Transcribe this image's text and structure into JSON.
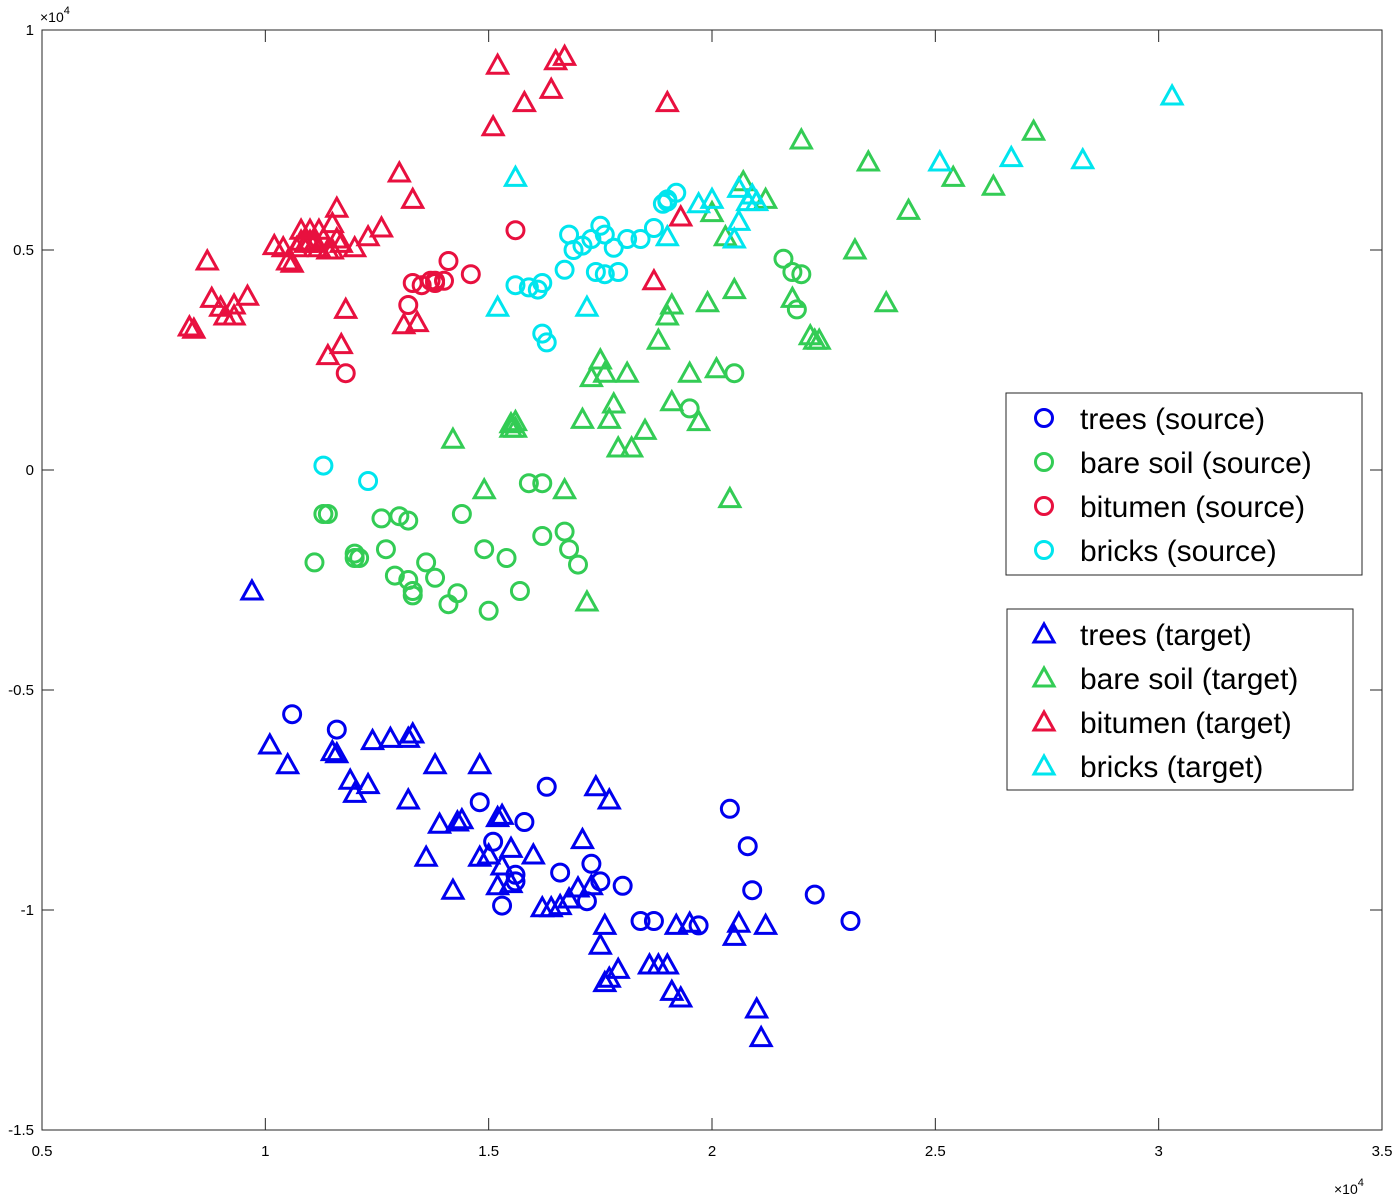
{
  "chart_data": {
    "type": "scatter",
    "x_multiplier": "×10",
    "x_exponent": "4",
    "y_multiplier": "×10",
    "y_exponent": "4",
    "xlim": [
      0.5,
      3.5
    ],
    "ylim": [
      -1.5,
      1.0
    ],
    "x_ticks": [
      0.5,
      1,
      1.5,
      2,
      2.5,
      3,
      3.5
    ],
    "x_tick_labels": [
      "0.5",
      "1",
      "1.5",
      "2",
      "2.5",
      "3",
      "3.5"
    ],
    "y_ticks": [
      -1.5,
      -1,
      -0.5,
      0,
      0.5,
      1
    ],
    "y_tick_labels": [
      "-1.5",
      "-1",
      "-0.5",
      "0",
      "0.5",
      "1"
    ],
    "grid": false,
    "legend_source_placement": "right",
    "legend_target_placement": "right",
    "series": [
      {
        "name": "trees (source)",
        "marker": "circle",
        "color": "#0000EE",
        "x": [
          1.06,
          1.16,
          1.48,
          1.51,
          1.53,
          1.56,
          1.56,
          1.58,
          1.63,
          1.66,
          1.72,
          1.73,
          1.75,
          1.8,
          1.84,
          1.87,
          1.97,
          2.04,
          2.08,
          2.09,
          2.23,
          2.31
        ],
        "y": [
          -0.555,
          -0.59,
          -0.755,
          -0.845,
          -0.99,
          -0.92,
          -0.935,
          -0.8,
          -0.72,
          -0.915,
          -0.98,
          -0.895,
          -0.935,
          -0.945,
          -1.025,
          -1.025,
          -1.035,
          -0.77,
          -0.855,
          -0.955,
          -0.965,
          -1.025
        ]
      },
      {
        "name": "bare soil (source)",
        "marker": "circle",
        "color": "#33CC55",
        "x": [
          1.11,
          1.13,
          1.14,
          1.2,
          1.2,
          1.21,
          1.26,
          1.27,
          1.29,
          1.3,
          1.32,
          1.32,
          1.33,
          1.33,
          1.36,
          1.38,
          1.41,
          1.43,
          1.44,
          1.49,
          1.5,
          1.54,
          1.57,
          1.59,
          1.62,
          1.62,
          1.67,
          1.68,
          1.7,
          1.95,
          2.05,
          2.16,
          2.18,
          2.19,
          2.2
        ],
        "y": [
          -0.21,
          -0.1,
          -0.1,
          -0.19,
          -0.2,
          -0.2,
          -0.11,
          -0.18,
          -0.24,
          -0.105,
          -0.115,
          -0.25,
          -0.275,
          -0.285,
          -0.21,
          -0.245,
          -0.305,
          -0.28,
          -0.1,
          -0.18,
          -0.32,
          -0.2,
          -0.275,
          -0.03,
          -0.15,
          -0.03,
          -0.14,
          -0.18,
          -0.215,
          0.14,
          0.22,
          0.48,
          0.45,
          0.365,
          0.445
        ]
      },
      {
        "name": "bitumen (source)",
        "marker": "circle",
        "color": "#E8103F",
        "x": [
          1.18,
          1.32,
          1.33,
          1.35,
          1.37,
          1.38,
          1.38,
          1.4,
          1.41,
          1.46,
          1.56
        ],
        "y": [
          0.22,
          0.375,
          0.425,
          0.42,
          0.43,
          0.43,
          0.425,
          0.43,
          0.475,
          0.445,
          0.545
        ]
      },
      {
        "name": "bricks (source)",
        "marker": "circle",
        "color": "#00E5EE",
        "x": [
          1.13,
          1.23,
          1.56,
          1.59,
          1.61,
          1.62,
          1.62,
          1.63,
          1.67,
          1.68,
          1.69,
          1.71,
          1.73,
          1.74,
          1.75,
          1.76,
          1.76,
          1.78,
          1.79,
          1.81,
          1.84,
          1.87,
          1.89,
          1.9,
          1.9,
          1.92
        ],
        "y": [
          0.01,
          -0.025,
          0.42,
          0.415,
          0.41,
          0.425,
          0.31,
          0.29,
          0.455,
          0.535,
          0.5,
          0.51,
          0.525,
          0.45,
          0.555,
          0.535,
          0.445,
          0.505,
          0.45,
          0.525,
          0.525,
          0.55,
          0.605,
          0.615,
          0.61,
          0.63
        ]
      },
      {
        "name": "trees (target)",
        "marker": "triangle",
        "color": "#0000EE",
        "x": [
          0.97,
          1.01,
          1.05,
          1.15,
          1.16,
          1.19,
          1.2,
          1.23,
          1.24,
          1.28,
          1.32,
          1.32,
          1.33,
          1.36,
          1.38,
          1.39,
          1.42,
          1.43,
          1.44,
          1.48,
          1.48,
          1.5,
          1.52,
          1.52,
          1.53,
          1.53,
          1.55,
          1.55,
          1.6,
          1.62,
          1.64,
          1.66,
          1.68,
          1.7,
          1.71,
          1.73,
          1.74,
          1.75,
          1.76,
          1.76,
          1.77,
          1.77,
          1.79,
          1.86,
          1.88,
          1.9,
          1.91,
          1.92,
          1.93,
          1.95,
          2.05,
          2.06,
          2.1,
          2.11,
          2.12
        ],
        "y": [
          -0.275,
          -0.625,
          -0.67,
          -0.64,
          -0.645,
          -0.705,
          -0.735,
          -0.715,
          -0.615,
          -0.61,
          -0.75,
          -0.61,
          -0.6,
          -0.88,
          -0.67,
          -0.805,
          -0.955,
          -0.8,
          -0.795,
          -0.67,
          -0.88,
          -0.875,
          -0.79,
          -0.945,
          -0.785,
          -0.9,
          -0.86,
          -0.94,
          -0.875,
          -0.995,
          -0.995,
          -0.99,
          -0.975,
          -0.95,
          -0.84,
          -0.945,
          -0.72,
          -1.08,
          -1.165,
          -1.035,
          -0.75,
          -1.155,
          -1.135,
          -1.125,
          -1.125,
          -1.125,
          -1.185,
          -1.035,
          -1.2,
          -1.03,
          -1.06,
          -1.03,
          -1.225,
          -1.29,
          -1.035
        ]
      },
      {
        "name": "bare soil (target)",
        "marker": "triangle",
        "color": "#33CC55",
        "x": [
          1.42,
          1.49,
          1.55,
          1.55,
          1.56,
          1.56,
          1.67,
          1.71,
          1.72,
          1.73,
          1.75,
          1.76,
          1.77,
          1.78,
          1.79,
          1.81,
          1.82,
          1.85,
          1.88,
          1.9,
          1.91,
          1.91,
          1.95,
          1.97,
          1.99,
          2.0,
          2.01,
          2.03,
          2.04,
          2.05,
          2.07,
          2.12,
          2.18,
          2.2,
          2.22,
          2.23,
          2.24,
          2.32,
          2.35,
          2.39,
          2.44,
          2.54,
          2.63,
          2.72
        ],
        "y": [
          0.07,
          -0.045,
          0.105,
          0.095,
          0.11,
          0.095,
          -0.045,
          0.115,
          -0.3,
          0.21,
          0.25,
          0.22,
          0.115,
          0.15,
          0.05,
          0.22,
          0.05,
          0.09,
          0.295,
          0.35,
          0.375,
          0.155,
          0.22,
          0.11,
          0.38,
          0.585,
          0.23,
          0.53,
          -0.065,
          0.41,
          0.655,
          0.615,
          0.39,
          0.75,
          0.305,
          0.295,
          0.295,
          0.5,
          0.7,
          0.38,
          0.59,
          0.665,
          0.645,
          0.77
        ]
      },
      {
        "name": "bitumen (target)",
        "marker": "triangle",
        "color": "#E8103F",
        "x": [
          0.83,
          0.84,
          0.87,
          0.88,
          0.9,
          0.91,
          0.93,
          0.93,
          0.96,
          1.02,
          1.04,
          1.05,
          1.06,
          1.07,
          1.08,
          1.08,
          1.09,
          1.1,
          1.1,
          1.11,
          1.12,
          1.12,
          1.13,
          1.14,
          1.14,
          1.15,
          1.15,
          1.16,
          1.16,
          1.17,
          1.17,
          1.18,
          1.2,
          1.23,
          1.26,
          1.3,
          1.31,
          1.33,
          1.34,
          1.51,
          1.52,
          1.58,
          1.64,
          1.65,
          1.67,
          1.87,
          1.9,
          1.93
        ],
        "y": [
          0.325,
          0.32,
          0.475,
          0.39,
          0.37,
          0.35,
          0.375,
          0.35,
          0.395,
          0.51,
          0.505,
          0.475,
          0.47,
          0.505,
          0.545,
          0.52,
          0.515,
          0.52,
          0.545,
          0.515,
          0.505,
          0.545,
          0.525,
          0.26,
          0.5,
          0.5,
          0.56,
          0.525,
          0.595,
          0.285,
          0.515,
          0.365,
          0.505,
          0.53,
          0.55,
          0.675,
          0.33,
          0.615,
          0.335,
          0.78,
          0.92,
          0.835,
          0.865,
          0.93,
          0.94,
          0.43,
          0.835,
          0.575
        ]
      },
      {
        "name": "bricks (target)",
        "marker": "triangle",
        "color": "#00E5EE",
        "x": [
          1.52,
          1.56,
          1.72,
          1.9,
          1.97,
          2.0,
          2.05,
          2.06,
          2.06,
          2.08,
          2.09,
          2.1,
          2.51,
          2.67,
          2.83,
          3.03
        ],
        "y": [
          0.37,
          0.665,
          0.37,
          0.53,
          0.605,
          0.615,
          0.525,
          0.565,
          0.64,
          0.61,
          0.625,
          0.61,
          0.7,
          0.71,
          0.705,
          0.85
        ]
      }
    ],
    "legend_source": [
      "trees (source)",
      "bare soil (source)",
      "bitumen (source)",
      "bricks (source)"
    ],
    "legend_target": [
      "trees (target)",
      "bare soil (target)",
      "bitumen (target)",
      "bricks (target)"
    ]
  }
}
